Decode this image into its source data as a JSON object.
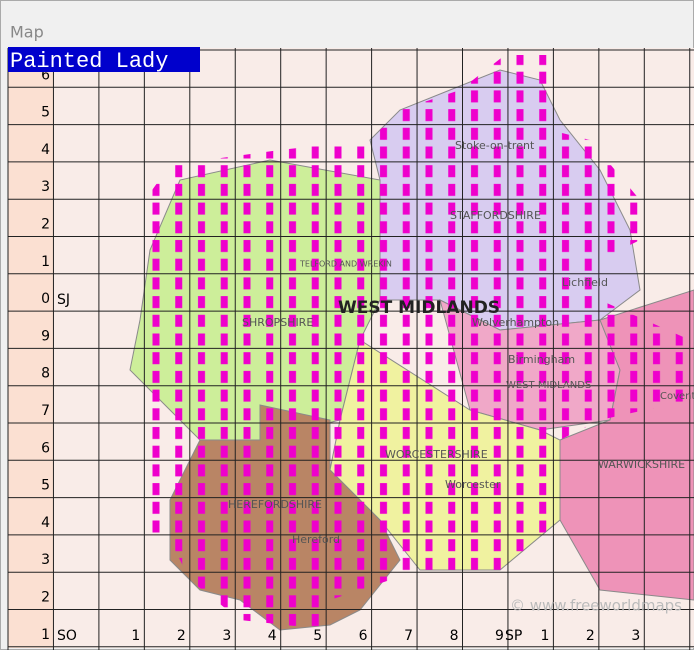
{
  "window": {
    "title": "Map"
  },
  "layer_label": "Painted Lady",
  "row_labels": [
    "6",
    "5",
    "4",
    "3",
    "2",
    "1",
    "0",
    "9",
    "8",
    "7",
    "6",
    "5",
    "4",
    "3",
    "2",
    "1"
  ],
  "column_labels": [
    "1",
    "2",
    "3",
    "4",
    "5",
    "6",
    "7",
    "8",
    "9",
    "1",
    "2",
    "3"
  ],
  "square_labels": {
    "upper_left": "SJ",
    "lower_left": "SO",
    "lower_right": "SP"
  },
  "regions": [
    "WEST MIDLANDS",
    "SHROPSHIRE",
    "STAFFORDSHIRE",
    "WORCESTERSHIRE",
    "HEREFORDSHIRE",
    "WARWICKSHIRE",
    "WEST MIDLANDS"
  ],
  "places": [
    "Stoke-on-trent",
    "Wolverhampton",
    "Birmingham",
    "Lichfield",
    "Worcester",
    "Hereford",
    "Coventry",
    "TELFORD AND WREKIN"
  ],
  "watermark": "© www.freeworldmaps"
}
